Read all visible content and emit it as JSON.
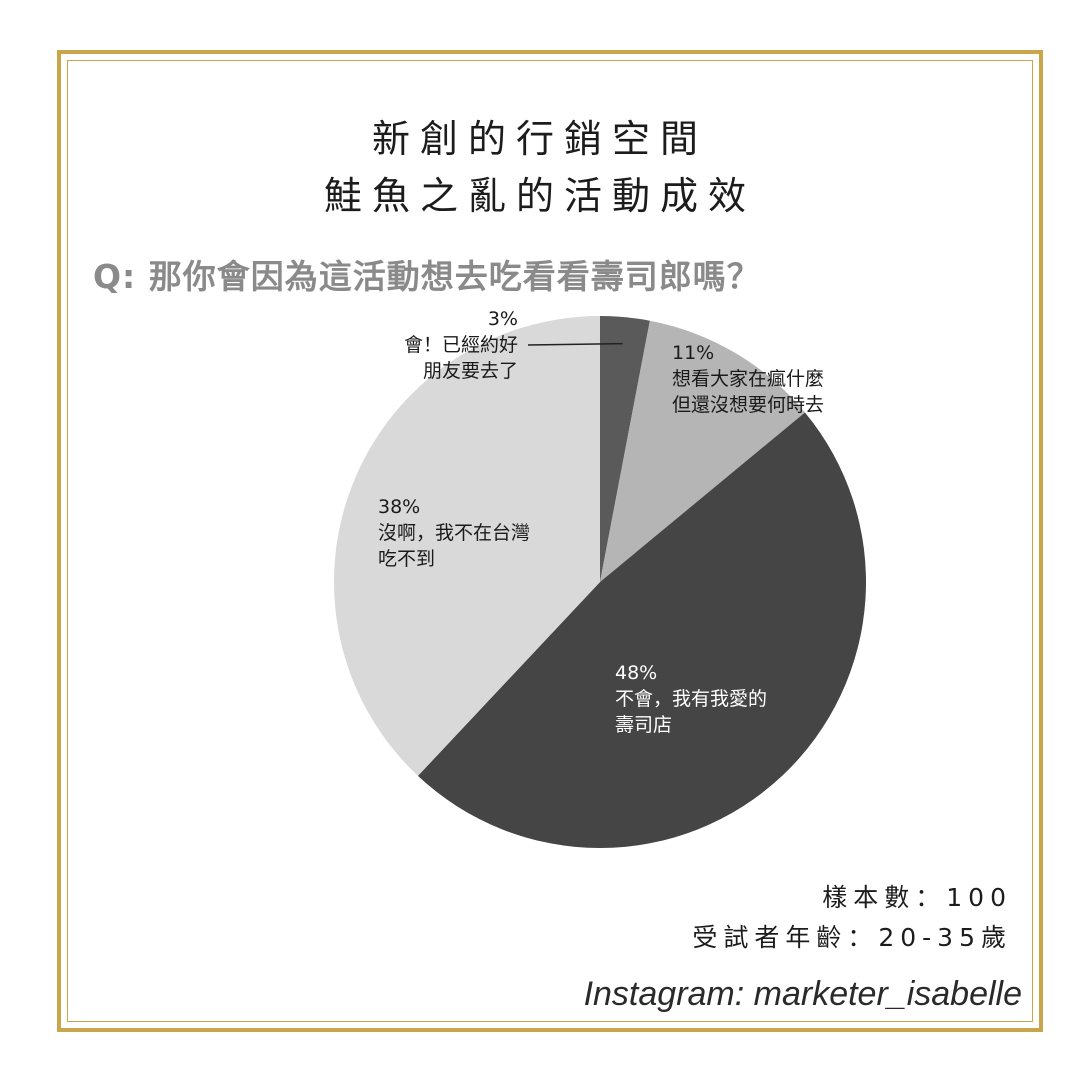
{
  "title_line1": "新創的行銷空間",
  "title_line2": "鮭魚之亂的活動成效",
  "question": "Q: 那你會因為這活動想去吃看看壽司郎嗎？",
  "footer": {
    "sample_size": "樣本數：100",
    "age_range": "受試者年齡：20-35歲"
  },
  "credit": "Instagram: marketer_isabelle",
  "colors": {
    "frame": "#c9a64b",
    "slice_0": "#5a5a5a",
    "slice_1": "#b5b5b5",
    "slice_2": "#454545",
    "slice_3": "#d9d9d9"
  },
  "chart_data": {
    "type": "pie",
    "title": "鮭魚之亂的活動成效",
    "slices": [
      {
        "value": 3,
        "pct_label": "3%",
        "label": "會！已經約好\n朋友要去了"
      },
      {
        "value": 11,
        "pct_label": "11%",
        "label": "想看大家在瘋什麼\n但還沒想要何時去"
      },
      {
        "value": 48,
        "pct_label": "48%",
        "label": "不會，我有我愛的\n壽司店"
      },
      {
        "value": 38,
        "pct_label": "38%",
        "label": "沒啊，我不在台灣\n吃不到"
      }
    ]
  }
}
